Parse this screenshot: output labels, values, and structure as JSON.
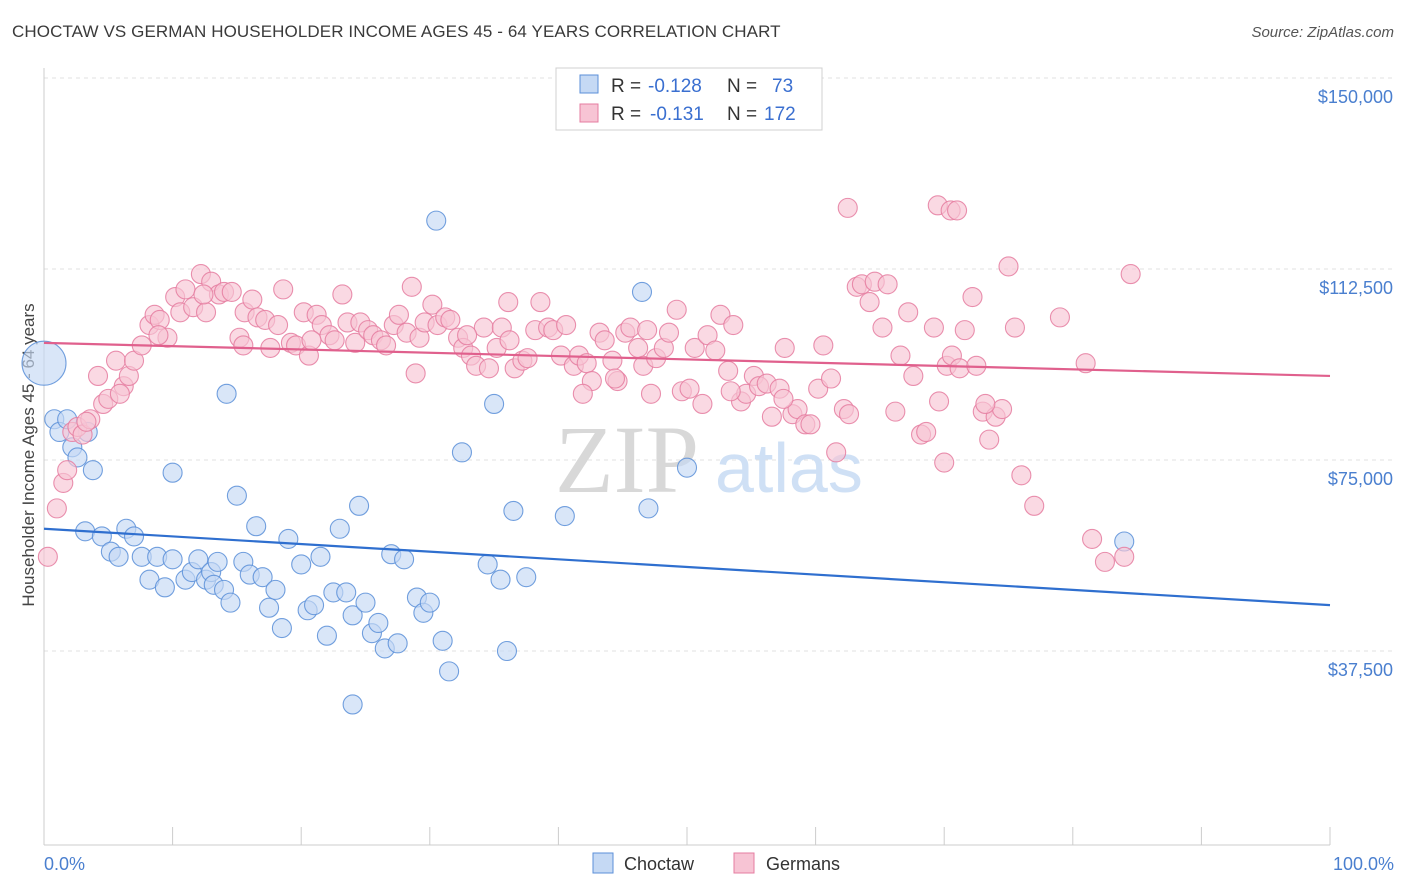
{
  "title": "CHOCTAW VS GERMAN HOUSEHOLDER INCOME AGES 45 - 64 YEARS CORRELATION CHART",
  "source": "Source: ZipAtlas.com",
  "watermark": {
    "zip": "ZIP",
    "atlas": "atlas"
  },
  "chart_data": {
    "type": "scatter",
    "ylabel": "Householder Income Ages 45 - 64 years",
    "xlim": [
      0,
      100
    ],
    "ylim": [
      0,
      157000
    ],
    "x_tick_labels": {
      "left": "0.0%",
      "right": "100.0%"
    },
    "y_ticks": [
      {
        "value": 150000,
        "label": "$150,000"
      },
      {
        "value": 112500,
        "label": "$112,500"
      },
      {
        "value": 75000,
        "label": "$75,000"
      },
      {
        "value": 37500,
        "label": "$37,500"
      }
    ],
    "legend": {
      "r_label": "R =",
      "n_label": "N =",
      "entries": [
        {
          "r": "-0.128",
          "n": "73"
        },
        {
          "r": "-0.131",
          "n": "172"
        }
      ]
    },
    "series": [
      {
        "name": "Choctaw",
        "color": "#5b8fd8",
        "fill": "#c5d9f4",
        "trend": {
          "x": [
            0,
            100
          ],
          "y": [
            61500,
            46500
          ]
        },
        "points": [
          [
            0.0,
            94000
          ],
          [
            0.8,
            83000
          ],
          [
            1.2,
            80500
          ],
          [
            1.8,
            83000
          ],
          [
            2.2,
            77500
          ],
          [
            2.6,
            75500
          ],
          [
            3.4,
            80500
          ],
          [
            3.8,
            73000
          ],
          [
            3.2,
            61000
          ],
          [
            4.5,
            60000
          ],
          [
            5.2,
            57000
          ],
          [
            5.8,
            56000
          ],
          [
            6.4,
            61500
          ],
          [
            7.0,
            60000
          ],
          [
            7.6,
            56000
          ],
          [
            8.2,
            51500
          ],
          [
            8.8,
            56000
          ],
          [
            9.4,
            50000
          ],
          [
            10.0,
            55500
          ],
          [
            10.0,
            72500
          ],
          [
            11.0,
            51500
          ],
          [
            11.5,
            53000
          ],
          [
            12.0,
            55500
          ],
          [
            12.6,
            51500
          ],
          [
            13.0,
            53000
          ],
          [
            13.5,
            55000
          ],
          [
            13.2,
            50500
          ],
          [
            14.0,
            49500
          ],
          [
            14.5,
            47000
          ],
          [
            14.2,
            88000
          ],
          [
            15.0,
            68000
          ],
          [
            15.5,
            55000
          ],
          [
            16.0,
            52500
          ],
          [
            16.5,
            62000
          ],
          [
            17.0,
            52000
          ],
          [
            17.5,
            46000
          ],
          [
            18.0,
            49500
          ],
          [
            18.5,
            42000
          ],
          [
            19.0,
            59500
          ],
          [
            20.0,
            54500
          ],
          [
            20.5,
            45500
          ],
          [
            21.0,
            46500
          ],
          [
            21.5,
            56000
          ],
          [
            22.0,
            40500
          ],
          [
            22.5,
            49000
          ],
          [
            23.0,
            61500
          ],
          [
            23.5,
            49000
          ],
          [
            24.0,
            44500
          ],
          [
            24.5,
            66000
          ],
          [
            25.0,
            47000
          ],
          [
            25.5,
            41000
          ],
          [
            26.0,
            43000
          ],
          [
            26.5,
            38000
          ],
          [
            27.0,
            56500
          ],
          [
            27.5,
            39000
          ],
          [
            28.0,
            55500
          ],
          [
            29.0,
            48000
          ],
          [
            29.5,
            45000
          ],
          [
            30.0,
            47000
          ],
          [
            31.0,
            39500
          ],
          [
            31.5,
            33500
          ],
          [
            32.5,
            76500
          ],
          [
            34.5,
            54500
          ],
          [
            35.0,
            86000
          ],
          [
            35.5,
            51500
          ],
          [
            36.5,
            65000
          ],
          [
            37.5,
            52000
          ],
          [
            40.5,
            64000
          ],
          [
            46.5,
            108000
          ],
          [
            47.0,
            65500
          ],
          [
            50.0,
            73500
          ],
          [
            84.0,
            59000
          ],
          [
            24.0,
            27000
          ],
          [
            36.0,
            37500
          ],
          [
            30.5,
            122000
          ]
        ],
        "sizes": {
          "0": 22
        }
      },
      {
        "name": "Germans",
        "color": "#e57ca0",
        "fill": "#f7c4d4",
        "trend": {
          "x": [
            0,
            100
          ],
          "y": [
            98000,
            91500
          ]
        },
        "points": [
          [
            0.3,
            56000
          ],
          [
            1.0,
            65500
          ],
          [
            1.5,
            70500
          ],
          [
            1.8,
            73000
          ],
          [
            2.2,
            80500
          ],
          [
            2.6,
            81500
          ],
          [
            3.0,
            80000
          ],
          [
            3.6,
            83000
          ],
          [
            4.2,
            91500
          ],
          [
            4.6,
            86000
          ],
          [
            5.0,
            87000
          ],
          [
            5.6,
            94500
          ],
          [
            6.2,
            89500
          ],
          [
            6.6,
            91500
          ],
          [
            7.0,
            94500
          ],
          [
            7.6,
            97500
          ],
          [
            8.2,
            101500
          ],
          [
            8.6,
            103500
          ],
          [
            9.0,
            102500
          ],
          [
            9.6,
            99000
          ],
          [
            10.2,
            107000
          ],
          [
            10.6,
            104000
          ],
          [
            11.0,
            108500
          ],
          [
            11.6,
            105000
          ],
          [
            12.2,
            111500
          ],
          [
            12.6,
            104000
          ],
          [
            13.0,
            110000
          ],
          [
            13.6,
            107500
          ],
          [
            14.0,
            108000
          ],
          [
            14.6,
            108000
          ],
          [
            15.2,
            99000
          ],
          [
            15.6,
            104000
          ],
          [
            16.2,
            106500
          ],
          [
            16.6,
            103000
          ],
          [
            17.2,
            102500
          ],
          [
            17.6,
            97000
          ],
          [
            18.2,
            101500
          ],
          [
            18.6,
            108500
          ],
          [
            19.2,
            98000
          ],
          [
            19.6,
            97500
          ],
          [
            20.2,
            104000
          ],
          [
            20.6,
            95500
          ],
          [
            21.2,
            103500
          ],
          [
            21.6,
            101500
          ],
          [
            22.2,
            99500
          ],
          [
            22.6,
            98500
          ],
          [
            23.2,
            107500
          ],
          [
            23.6,
            102000
          ],
          [
            24.2,
            98000
          ],
          [
            24.6,
            102000
          ],
          [
            25.2,
            100500
          ],
          [
            25.6,
            99500
          ],
          [
            26.2,
            98500
          ],
          [
            26.6,
            97500
          ],
          [
            27.2,
            101500
          ],
          [
            27.6,
            103500
          ],
          [
            28.2,
            100000
          ],
          [
            28.6,
            109000
          ],
          [
            29.2,
            99000
          ],
          [
            29.6,
            102000
          ],
          [
            30.2,
            105500
          ],
          [
            30.6,
            101500
          ],
          [
            31.2,
            103000
          ],
          [
            31.6,
            102500
          ],
          [
            32.2,
            99000
          ],
          [
            32.6,
            97000
          ],
          [
            33.2,
            95500
          ],
          [
            33.6,
            93500
          ],
          [
            34.2,
            101000
          ],
          [
            34.6,
            93000
          ],
          [
            35.2,
            97000
          ],
          [
            35.6,
            101000
          ],
          [
            36.2,
            98500
          ],
          [
            36.6,
            93000
          ],
          [
            37.2,
            94500
          ],
          [
            37.6,
            95000
          ],
          [
            38.2,
            100500
          ],
          [
            38.6,
            106000
          ],
          [
            39.2,
            101000
          ],
          [
            39.6,
            100500
          ],
          [
            40.2,
            95500
          ],
          [
            40.6,
            101500
          ],
          [
            41.2,
            93500
          ],
          [
            41.6,
            95500
          ],
          [
            42.2,
            94000
          ],
          [
            42.6,
            90500
          ],
          [
            43.2,
            100000
          ],
          [
            43.6,
            98500
          ],
          [
            44.2,
            94500
          ],
          [
            44.6,
            90500
          ],
          [
            45.2,
            100000
          ],
          [
            45.6,
            101000
          ],
          [
            46.2,
            97000
          ],
          [
            46.6,
            93500
          ],
          [
            47.2,
            88000
          ],
          [
            47.6,
            95000
          ],
          [
            48.2,
            97000
          ],
          [
            48.6,
            100000
          ],
          [
            49.2,
            104500
          ],
          [
            49.6,
            88500
          ],
          [
            50.2,
            89000
          ],
          [
            50.6,
            97000
          ],
          [
            51.2,
            86000
          ],
          [
            51.6,
            99500
          ],
          [
            52.2,
            96500
          ],
          [
            52.6,
            103500
          ],
          [
            53.2,
            92500
          ],
          [
            53.6,
            101500
          ],
          [
            54.2,
            86500
          ],
          [
            54.6,
            88000
          ],
          [
            55.2,
            91500
          ],
          [
            55.6,
            89500
          ],
          [
            56.2,
            90000
          ],
          [
            56.6,
            83500
          ],
          [
            57.2,
            89000
          ],
          [
            57.6,
            97000
          ],
          [
            58.2,
            84000
          ],
          [
            58.6,
            85000
          ],
          [
            59.2,
            82000
          ],
          [
            59.6,
            82000
          ],
          [
            60.2,
            89000
          ],
          [
            60.6,
            97500
          ],
          [
            61.2,
            91000
          ],
          [
            61.6,
            76500
          ],
          [
            62.2,
            85000
          ],
          [
            62.6,
            84000
          ],
          [
            63.2,
            109000
          ],
          [
            63.6,
            109500
          ],
          [
            64.2,
            106000
          ],
          [
            64.6,
            110000
          ],
          [
            65.2,
            101000
          ],
          [
            65.6,
            109500
          ],
          [
            66.2,
            84500
          ],
          [
            66.6,
            95500
          ],
          [
            67.2,
            104000
          ],
          [
            67.6,
            91500
          ],
          [
            68.2,
            80000
          ],
          [
            68.6,
            80500
          ],
          [
            69.2,
            101000
          ],
          [
            69.6,
            86500
          ],
          [
            70.2,
            93500
          ],
          [
            70.6,
            95500
          ],
          [
            71.2,
            93000
          ],
          [
            71.6,
            100500
          ],
          [
            72.2,
            107000
          ],
          [
            73.0,
            84500
          ],
          [
            73.5,
            79000
          ],
          [
            74.0,
            83500
          ],
          [
            74.5,
            85000
          ],
          [
            75.0,
            113000
          ],
          [
            75.5,
            101000
          ],
          [
            76.0,
            72000
          ],
          [
            77.0,
            66000
          ],
          [
            79.0,
            103000
          ],
          [
            81.0,
            94000
          ],
          [
            81.5,
            59500
          ],
          [
            82.5,
            55000
          ],
          [
            84.0,
            56000
          ],
          [
            84.5,
            111500
          ],
          [
            69.5,
            125000
          ],
          [
            70.5,
            124000
          ],
          [
            71.0,
            124000
          ],
          [
            62.5,
            124500
          ],
          [
            70.0,
            74500
          ],
          [
            73.2,
            86000
          ],
          [
            72.5,
            93500
          ],
          [
            57.5,
            87000
          ],
          [
            53.4,
            88500
          ],
          [
            41.9,
            88000
          ],
          [
            44.4,
            91000
          ],
          [
            36.1,
            106000
          ],
          [
            32.9,
            99500
          ],
          [
            20.8,
            98500
          ],
          [
            12.4,
            107500
          ],
          [
            8.9,
            99500
          ],
          [
            5.9,
            88000
          ],
          [
            3.3,
            82500
          ],
          [
            15.5,
            97500
          ],
          [
            28.9,
            92000
          ],
          [
            46.9,
            100500
          ]
        ]
      }
    ]
  }
}
